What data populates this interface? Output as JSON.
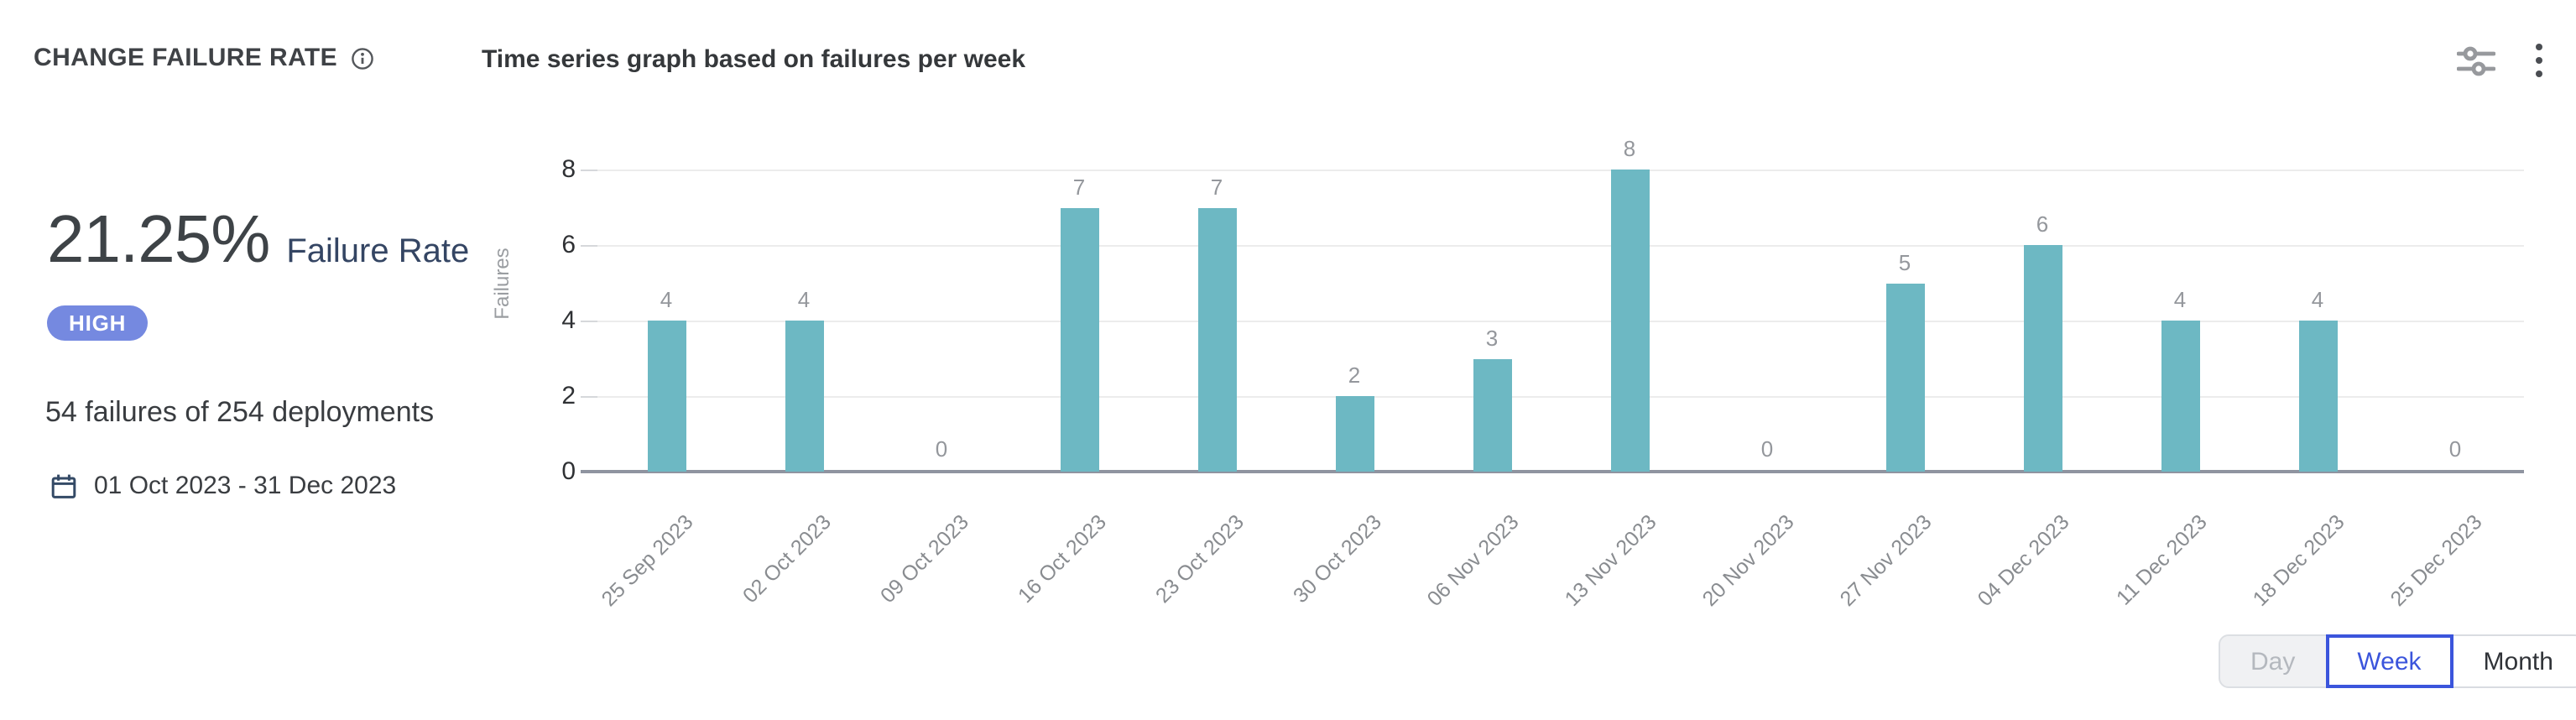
{
  "header": {
    "title": "CHANGE FAILURE RATE",
    "chart_title": "Time series graph based on failures per week"
  },
  "summary": {
    "rate_value": "21.25%",
    "rate_label": "Failure Rate",
    "severity_badge": "HIGH",
    "severity_color": "#7589e0",
    "detail": "54 failures of 254 deployments",
    "date_range": "01 Oct 2023 - 31 Dec 2023"
  },
  "toolbar": {
    "accent_color": "#3b55dc",
    "granularity_options": [
      {
        "label": "Day",
        "state": "disabled"
      },
      {
        "label": "Week",
        "state": "selected"
      },
      {
        "label": "Month",
        "state": "default"
      }
    ]
  },
  "chart_data": {
    "type": "bar",
    "title": "Time series graph based on failures per week",
    "categories": [
      "25 Sep 2023",
      "02 Oct 2023",
      "09 Oct 2023",
      "16 Oct 2023",
      "23 Oct 2023",
      "30 Oct 2023",
      "06 Nov 2023",
      "13 Nov 2023",
      "20 Nov 2023",
      "27 Nov 2023",
      "04 Dec 2023",
      "11 Dec 2023",
      "18 Dec 2023",
      "25 Dec 2023"
    ],
    "values": [
      4,
      4,
      0,
      7,
      7,
      2,
      3,
      8,
      0,
      5,
      6,
      4,
      4,
      0
    ],
    "xlabel": "",
    "ylabel": "Failures",
    "ylim": [
      0,
      8
    ],
    "yticks": [
      0,
      2,
      4,
      6,
      8
    ],
    "bar_color": "#6db8c3",
    "grid": true,
    "value_labels": true,
    "legend": "none"
  }
}
